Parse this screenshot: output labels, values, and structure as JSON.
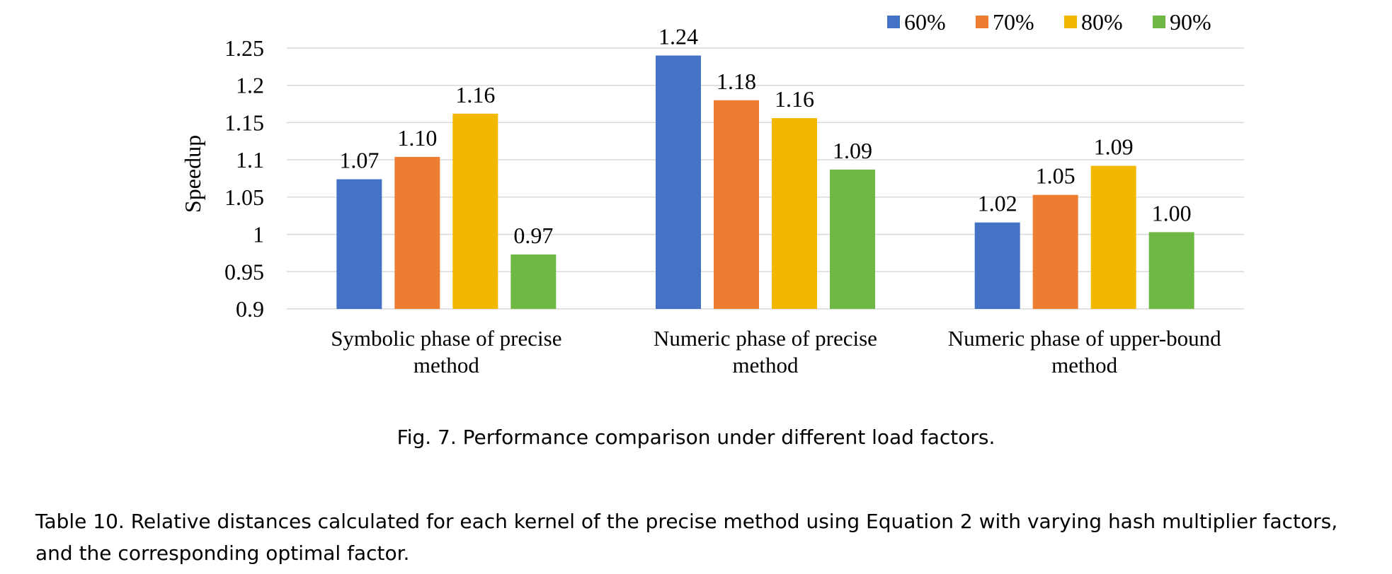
{
  "figure_caption": "Fig. 7.  Performance comparison under different load factors.",
  "table_caption_line1": "Table 10.  Relative distances calculated for each kernel of the precise method using Equation 2 with varying hash multiplier factors,",
  "table_caption_line2": "and the corresponding optimal factor.",
  "chart_data": {
    "type": "bar",
    "title": "",
    "xlabel": "",
    "ylabel": "Speedup",
    "ylim": [
      0.9,
      1.25
    ],
    "yticks": [
      "0.9",
      "0.95",
      "1",
      "1.05",
      "1.1",
      "1.15",
      "1.2",
      "1.25"
    ],
    "grid": true,
    "legend_position": "top-right",
    "categories": [
      [
        "Symbolic phase of precise",
        "method"
      ],
      [
        "Numeric phase of precise",
        "method"
      ],
      [
        "Numeric phase of upper-bound",
        "method"
      ]
    ],
    "series": [
      {
        "name": "60%",
        "color": "#4472C4",
        "values": [
          1.074,
          1.24,
          1.016
        ],
        "labels": [
          "1.07",
          "1.24",
          "1.02"
        ]
      },
      {
        "name": "70%",
        "color": "#ED7D31",
        "values": [
          1.104,
          1.18,
          1.053
        ],
        "labels": [
          "1.10",
          "1.18",
          "1.05"
        ]
      },
      {
        "name": "80%",
        "color": "#F2B800",
        "values": [
          1.162,
          1.156,
          1.092
        ],
        "labels": [
          "1.16",
          "1.16",
          "1.09"
        ]
      },
      {
        "name": "90%",
        "color": "#70B844",
        "values": [
          0.973,
          1.087,
          1.003
        ],
        "labels": [
          "0.97",
          "1.09",
          "1.00"
        ]
      }
    ]
  }
}
